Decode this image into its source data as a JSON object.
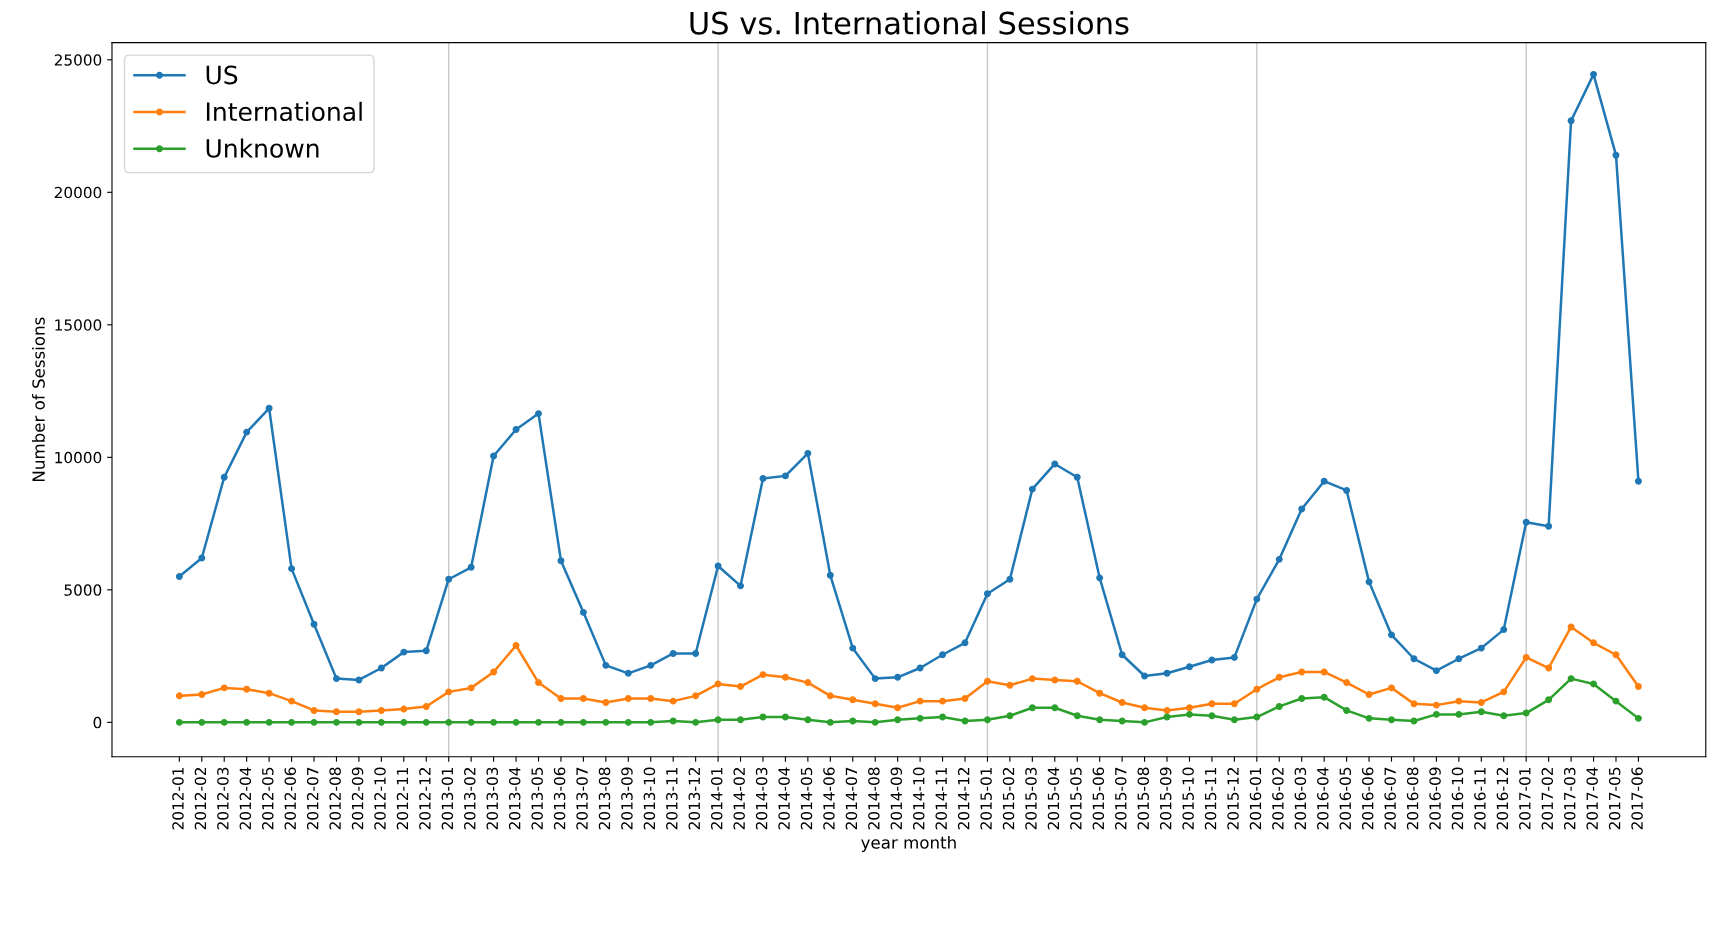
{
  "chart_data": {
    "type": "line",
    "title": "US vs. International Sessions",
    "xlabel": "year month",
    "ylabel": "Number of Sessions",
    "categories": [
      "2012-01",
      "2012-02",
      "2012-03",
      "2012-04",
      "2012-05",
      "2012-06",
      "2012-07",
      "2012-08",
      "2012-09",
      "2012-10",
      "2012-11",
      "2012-12",
      "2013-01",
      "2013-02",
      "2013-03",
      "2013-04",
      "2013-05",
      "2013-06",
      "2013-07",
      "2013-08",
      "2013-09",
      "2013-10",
      "2013-11",
      "2013-12",
      "2014-01",
      "2014-02",
      "2014-03",
      "2014-04",
      "2014-05",
      "2014-06",
      "2014-07",
      "2014-08",
      "2014-09",
      "2014-10",
      "2014-11",
      "2014-12",
      "2015-01",
      "2015-02",
      "2015-03",
      "2015-04",
      "2015-05",
      "2015-06",
      "2015-07",
      "2015-08",
      "2015-09",
      "2015-10",
      "2015-11",
      "2015-12",
      "2016-01",
      "2016-02",
      "2016-03",
      "2016-04",
      "2016-05",
      "2016-06",
      "2016-07",
      "2016-08",
      "2016-09",
      "2016-10",
      "2016-11",
      "2016-12",
      "2017-01",
      "2017-02",
      "2017-03",
      "2017-04",
      "2017-05",
      "2017-06"
    ],
    "series": [
      {
        "name": "US",
        "color": "#1f77b4",
        "values": [
          5500,
          6200,
          9250,
          10950,
          11850,
          5800,
          3700,
          1650,
          1600,
          2050,
          2650,
          2700,
          5400,
          5850,
          10050,
          11050,
          11650,
          6100,
          4150,
          2150,
          1850,
          2150,
          2600,
          2600,
          5900,
          5150,
          9200,
          9300,
          10150,
          5550,
          2800,
          1650,
          1700,
          2050,
          2550,
          3000,
          4850,
          5400,
          8800,
          9750,
          9250,
          5450,
          2550,
          1750,
          1850,
          2100,
          2350,
          2450,
          4650,
          6150,
          8050,
          9100,
          8750,
          5300,
          3300,
          2400,
          1950,
          2400,
          2800,
          3500,
          7550,
          7400,
          22700,
          24450,
          21400,
          9100
        ]
      },
      {
        "name": "International",
        "color": "#ff7f0e",
        "values": [
          1000,
          1050,
          1300,
          1250,
          1100,
          800,
          450,
          400,
          400,
          450,
          500,
          600,
          1150,
          1300,
          1900,
          2900,
          1500,
          900,
          900,
          750,
          900,
          900,
          800,
          1000,
          1450,
          1350,
          1800,
          1700,
          1500,
          1000,
          850,
          700,
          550,
          800,
          800,
          900,
          1550,
          1400,
          1650,
          1600,
          1550,
          1100,
          750,
          550,
          450,
          550,
          700,
          700,
          1250,
          1700,
          1900,
          1900,
          1500,
          1050,
          1300,
          700,
          650,
          800,
          750,
          1150,
          2450,
          2050,
          3600,
          3000,
          2550,
          1350
        ]
      },
      {
        "name": "Unknown",
        "color": "#2ca02c",
        "values": [
          0,
          0,
          0,
          0,
          0,
          0,
          0,
          0,
          0,
          0,
          0,
          0,
          0,
          0,
          0,
          0,
          0,
          0,
          0,
          0,
          0,
          0,
          50,
          0,
          100,
          100,
          200,
          200,
          100,
          0,
          50,
          0,
          100,
          150,
          200,
          50,
          100,
          250,
          550,
          550,
          250,
          100,
          50,
          0,
          200,
          300,
          250,
          100,
          200,
          600,
          900,
          950,
          450,
          150,
          100,
          50,
          300,
          300,
          400,
          250,
          350,
          850,
          1650,
          1450,
          800,
          150
        ]
      }
    ],
    "ylim": [
      -1300,
      25650
    ],
    "yticks": [
      0,
      5000,
      10000,
      15000,
      20000,
      25000
    ],
    "ref_lines": [
      {
        "axis": "x",
        "value": "2013-01",
        "color": "#c8c8c8"
      },
      {
        "axis": "x",
        "value": "2014-01",
        "color": "#c8c8c8"
      },
      {
        "axis": "x",
        "value": "2015-01",
        "color": "#c8c8c8"
      },
      {
        "axis": "x",
        "value": "2016-01",
        "color": "#c8c8c8"
      },
      {
        "axis": "x",
        "value": "2017-01",
        "color": "#c8c8c8"
      }
    ],
    "marker": "circle",
    "line_style": "solid",
    "legend": "top left",
    "grid": false
  }
}
